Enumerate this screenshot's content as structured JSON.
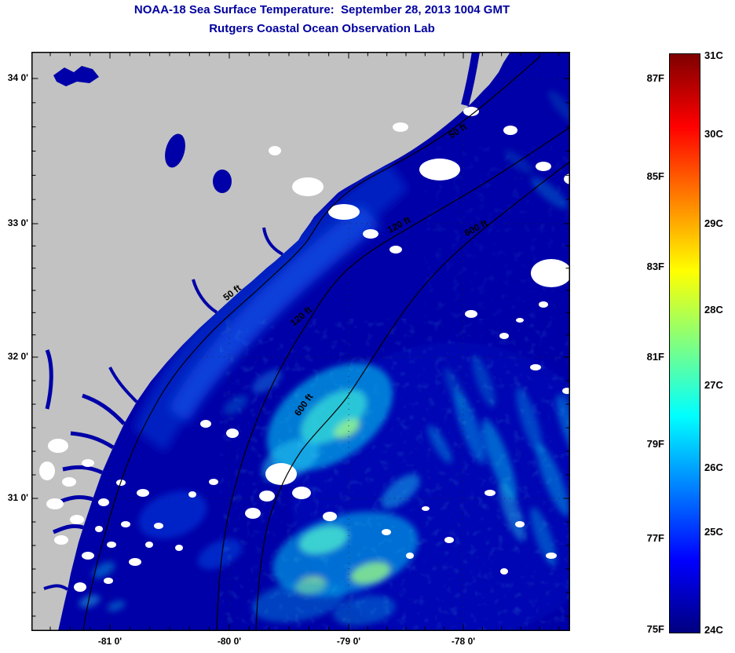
{
  "title": {
    "line1": "NOAA-18 Sea Surface Temperature:  September 28, 2013 1004 GMT",
    "line2": "Rutgers Coastal Ocean Observation Lab"
  },
  "axes": {
    "y_ticks": [
      "34 0'",
      "33 0'",
      "32 0'",
      "31 0'"
    ],
    "x_ticks": [
      "-81 0'",
      "-80 0'",
      "-79 0'",
      "-78 0'"
    ]
  },
  "map": {
    "contour_labels": [
      "50 ft",
      "120 ft",
      "600 ft",
      "50 ft",
      "120 ft",
      "600 ft"
    ]
  },
  "colorbar": {
    "fahrenheit_labels": [
      "87F",
      "85F",
      "83F",
      "81F",
      "79F",
      "77F",
      "75F"
    ],
    "celsius_labels": [
      "31C",
      "30C",
      "29C",
      "28C",
      "27C",
      "26C",
      "25C",
      "24C"
    ]
  },
  "colors": {
    "title_blue": "#00009E",
    "land_gray": "#C2C2C2",
    "ocean_navy": "#0000A8",
    "cloud_white": "#FFFFFF"
  },
  "chart_data": {
    "type": "heatmap",
    "title": "NOAA-18 Sea Surface Temperature: September 28, 2013 1004 GMT",
    "subtitle": "Rutgers Coastal Ocean Observation Lab",
    "xlabel": "",
    "ylabel": "",
    "x_tick_labels": [
      "-81 0'",
      "-80 0'",
      "-79 0'",
      "-78 0'"
    ],
    "y_tick_labels": [
      "34 0'",
      "33 0'",
      "32 0'",
      "31 0'"
    ],
    "x_range_est_deg": [
      -81.65,
      -77.15
    ],
    "y_range_est_deg": [
      30.05,
      34.2
    ],
    "colormap": "jet",
    "colorbar_range_c": [
      24,
      31
    ],
    "colorbar_ticks_c": [
      31,
      30,
      29,
      28,
      27,
      26,
      25,
      24
    ],
    "colorbar_ticks_f": [
      87,
      85,
      83,
      81,
      79,
      77,
      75
    ],
    "depth_contours_ft": [
      50,
      120,
      600
    ],
    "grid": "dotted at whole degrees",
    "legend_position": "right colorbar",
    "regions": [
      {
        "name": "land (South Carolina / Georgia coast, upper-left)",
        "value": "gray mask"
      },
      {
        "name": "cloud / no-data patches",
        "value": "white mask"
      },
      {
        "name": "dominant shelf and offshore water",
        "sst_c_est": [
          24,
          25.5
        ]
      },
      {
        "name": "nearshore band paralleling the coast",
        "sst_c_est": [
          25,
          26.5
        ]
      },
      {
        "name": "mid-shelf mottled patches (center and lower-center)",
        "sst_c_est": [
          26.5,
          28
        ]
      },
      {
        "name": "offshore diagonal streaks (right third)",
        "sst_c_est": [
          25.5,
          27
        ]
      }
    ]
  }
}
